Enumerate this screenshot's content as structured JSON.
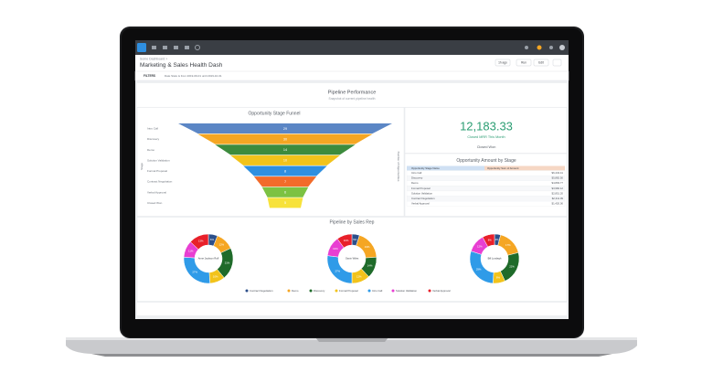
{
  "header": {
    "breadcrumb": "Some Dashboard >",
    "title": "Marketing & Sales Health Dash",
    "buttons": [
      "1h ago",
      "Run",
      "Edit"
    ]
  },
  "filters": {
    "label": "FILTERS",
    "text": "Date Stats is from 2019-09-01 until 2019-10-01"
  },
  "section": {
    "title": "Pipeline Performance",
    "subtitle": "Snapshot of current pipeline health"
  },
  "funnel": {
    "type": "funnel",
    "title": "Opportunity Stage Funnel",
    "y_label": "Stage",
    "x_label": "Number of Opportunities",
    "categories": [
      "Intro Call",
      "Discovery",
      "Demo",
      "Solution Validation",
      "Formal Proposal",
      "Contract Negotiation",
      "Verbal Approval",
      "Closed Won"
    ],
    "values": [
      29,
      30,
      14,
      10,
      8,
      7,
      6,
      5
    ],
    "colors": [
      "#5b86c5",
      "#f5a623",
      "#3d8b3d",
      "#f2c31b",
      "#2f8fe0",
      "#f26b2a",
      "#7cc242",
      "#f7e23a"
    ]
  },
  "kpi": {
    "value": "12,183.33",
    "label": "Closed MRR This Month",
    "footer": "Closed Won"
  },
  "table": {
    "title": "Opportunity Amount by Stage",
    "columns": [
      "Opportunity Stage Name",
      "Opportunity Sum of Amount"
    ],
    "rows": [
      [
        "Intro Call",
        "$6,443.41"
      ],
      [
        "Discovery",
        "$5,882.50"
      ],
      [
        "Demo",
        "$4,893.77"
      ],
      [
        "Formal Proposal",
        "$3,960.12"
      ],
      [
        "Solution Validation",
        "$2,851.20"
      ],
      [
        "Contract Negotiation",
        "$2,311.09"
      ],
      [
        "Verbal Approval",
        "$1,420.00"
      ]
    ]
  },
  "donuts": {
    "type": "donut",
    "title": "Pipeline by Sales Rep",
    "series": [
      {
        "name": "Contract Negotiation",
        "color": "#2c4f8a"
      },
      {
        "name": "Demo",
        "color": "#f5a623"
      },
      {
        "name": "Discovery",
        "color": "#1f6b2a"
      },
      {
        "name": "Formal Proposal",
        "color": "#f2c31b"
      },
      {
        "name": "Intro Call",
        "color": "#2f9be8"
      },
      {
        "name": "Solution Validation",
        "color": "#e83fd2"
      },
      {
        "name": "Verbal Approval",
        "color": "#e8202a"
      }
    ],
    "reps": [
      {
        "name": "Anne Jackson Ruff",
        "values": [
          6,
          12,
          21,
          10,
          27,
          11,
          13
        ],
        "value_labels": [
          "6%",
          "12%",
          "21%",
          "10%",
          "27%",
          "11%",
          "13%"
        ]
      },
      {
        "name": "Gavin Wiles",
        "values": [
          5,
          19,
          14,
          12,
          27,
          13,
          10
        ],
        "value_labels": [
          "5%",
          "19%",
          "14%",
          "12%",
          "27%",
          "13%",
          "10%"
        ]
      },
      {
        "name": "Bill Lundegh",
        "values": [
          4,
          17,
          22,
          8,
          29,
          12,
          8
        ],
        "value_labels": [
          "4%",
          "17%",
          "22%",
          "8%",
          "29%",
          "12%",
          "8%"
        ]
      }
    ]
  }
}
